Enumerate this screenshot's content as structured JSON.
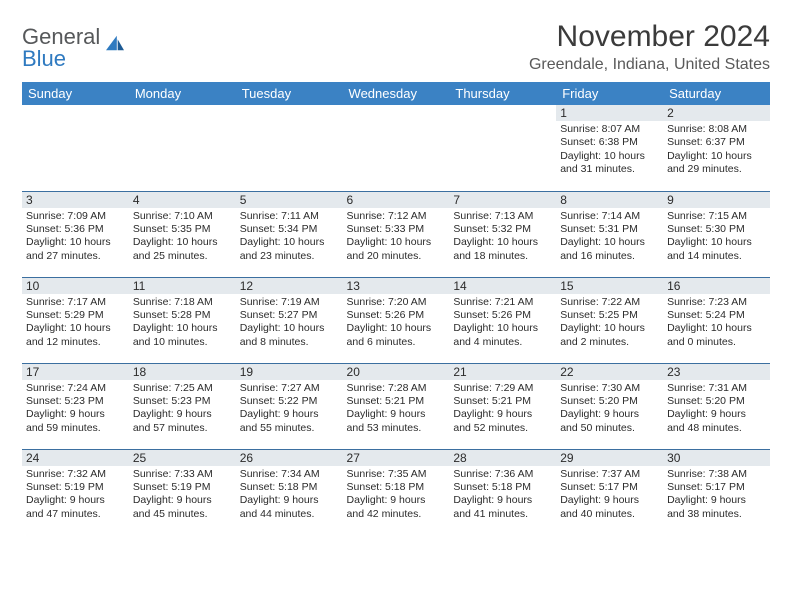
{
  "brand": {
    "line1": "General",
    "line2": "Blue"
  },
  "title": "November 2024",
  "location": "Greendale, Indiana, United States",
  "colors": {
    "header_bg": "#3b82c4",
    "header_text": "#ffffff",
    "daynum_bg": "#e4e9ed",
    "row_border": "#3b6fa0",
    "title_color": "#3b3b3b",
    "location_color": "#5a5a5a",
    "brand_gray": "#56585a",
    "brand_blue": "#2f7ac0"
  },
  "weekdays": [
    "Sunday",
    "Monday",
    "Tuesday",
    "Wednesday",
    "Thursday",
    "Friday",
    "Saturday"
  ],
  "weeks": [
    [
      {
        "day": "",
        "sunrise": "",
        "sunset": "",
        "daylight": ""
      },
      {
        "day": "",
        "sunrise": "",
        "sunset": "",
        "daylight": ""
      },
      {
        "day": "",
        "sunrise": "",
        "sunset": "",
        "daylight": ""
      },
      {
        "day": "",
        "sunrise": "",
        "sunset": "",
        "daylight": ""
      },
      {
        "day": "",
        "sunrise": "",
        "sunset": "",
        "daylight": ""
      },
      {
        "day": "1",
        "sunrise": "Sunrise: 8:07 AM",
        "sunset": "Sunset: 6:38 PM",
        "daylight": "Daylight: 10 hours and 31 minutes."
      },
      {
        "day": "2",
        "sunrise": "Sunrise: 8:08 AM",
        "sunset": "Sunset: 6:37 PM",
        "daylight": "Daylight: 10 hours and 29 minutes."
      }
    ],
    [
      {
        "day": "3",
        "sunrise": "Sunrise: 7:09 AM",
        "sunset": "Sunset: 5:36 PM",
        "daylight": "Daylight: 10 hours and 27 minutes."
      },
      {
        "day": "4",
        "sunrise": "Sunrise: 7:10 AM",
        "sunset": "Sunset: 5:35 PM",
        "daylight": "Daylight: 10 hours and 25 minutes."
      },
      {
        "day": "5",
        "sunrise": "Sunrise: 7:11 AM",
        "sunset": "Sunset: 5:34 PM",
        "daylight": "Daylight: 10 hours and 23 minutes."
      },
      {
        "day": "6",
        "sunrise": "Sunrise: 7:12 AM",
        "sunset": "Sunset: 5:33 PM",
        "daylight": "Daylight: 10 hours and 20 minutes."
      },
      {
        "day": "7",
        "sunrise": "Sunrise: 7:13 AM",
        "sunset": "Sunset: 5:32 PM",
        "daylight": "Daylight: 10 hours and 18 minutes."
      },
      {
        "day": "8",
        "sunrise": "Sunrise: 7:14 AM",
        "sunset": "Sunset: 5:31 PM",
        "daylight": "Daylight: 10 hours and 16 minutes."
      },
      {
        "day": "9",
        "sunrise": "Sunrise: 7:15 AM",
        "sunset": "Sunset: 5:30 PM",
        "daylight": "Daylight: 10 hours and 14 minutes."
      }
    ],
    [
      {
        "day": "10",
        "sunrise": "Sunrise: 7:17 AM",
        "sunset": "Sunset: 5:29 PM",
        "daylight": "Daylight: 10 hours and 12 minutes."
      },
      {
        "day": "11",
        "sunrise": "Sunrise: 7:18 AM",
        "sunset": "Sunset: 5:28 PM",
        "daylight": "Daylight: 10 hours and 10 minutes."
      },
      {
        "day": "12",
        "sunrise": "Sunrise: 7:19 AM",
        "sunset": "Sunset: 5:27 PM",
        "daylight": "Daylight: 10 hours and 8 minutes."
      },
      {
        "day": "13",
        "sunrise": "Sunrise: 7:20 AM",
        "sunset": "Sunset: 5:26 PM",
        "daylight": "Daylight: 10 hours and 6 minutes."
      },
      {
        "day": "14",
        "sunrise": "Sunrise: 7:21 AM",
        "sunset": "Sunset: 5:26 PM",
        "daylight": "Daylight: 10 hours and 4 minutes."
      },
      {
        "day": "15",
        "sunrise": "Sunrise: 7:22 AM",
        "sunset": "Sunset: 5:25 PM",
        "daylight": "Daylight: 10 hours and 2 minutes."
      },
      {
        "day": "16",
        "sunrise": "Sunrise: 7:23 AM",
        "sunset": "Sunset: 5:24 PM",
        "daylight": "Daylight: 10 hours and 0 minutes."
      }
    ],
    [
      {
        "day": "17",
        "sunrise": "Sunrise: 7:24 AM",
        "sunset": "Sunset: 5:23 PM",
        "daylight": "Daylight: 9 hours and 59 minutes."
      },
      {
        "day": "18",
        "sunrise": "Sunrise: 7:25 AM",
        "sunset": "Sunset: 5:23 PM",
        "daylight": "Daylight: 9 hours and 57 minutes."
      },
      {
        "day": "19",
        "sunrise": "Sunrise: 7:27 AM",
        "sunset": "Sunset: 5:22 PM",
        "daylight": "Daylight: 9 hours and 55 minutes."
      },
      {
        "day": "20",
        "sunrise": "Sunrise: 7:28 AM",
        "sunset": "Sunset: 5:21 PM",
        "daylight": "Daylight: 9 hours and 53 minutes."
      },
      {
        "day": "21",
        "sunrise": "Sunrise: 7:29 AM",
        "sunset": "Sunset: 5:21 PM",
        "daylight": "Daylight: 9 hours and 52 minutes."
      },
      {
        "day": "22",
        "sunrise": "Sunrise: 7:30 AM",
        "sunset": "Sunset: 5:20 PM",
        "daylight": "Daylight: 9 hours and 50 minutes."
      },
      {
        "day": "23",
        "sunrise": "Sunrise: 7:31 AM",
        "sunset": "Sunset: 5:20 PM",
        "daylight": "Daylight: 9 hours and 48 minutes."
      }
    ],
    [
      {
        "day": "24",
        "sunrise": "Sunrise: 7:32 AM",
        "sunset": "Sunset: 5:19 PM",
        "daylight": "Daylight: 9 hours and 47 minutes."
      },
      {
        "day": "25",
        "sunrise": "Sunrise: 7:33 AM",
        "sunset": "Sunset: 5:19 PM",
        "daylight": "Daylight: 9 hours and 45 minutes."
      },
      {
        "day": "26",
        "sunrise": "Sunrise: 7:34 AM",
        "sunset": "Sunset: 5:18 PM",
        "daylight": "Daylight: 9 hours and 44 minutes."
      },
      {
        "day": "27",
        "sunrise": "Sunrise: 7:35 AM",
        "sunset": "Sunset: 5:18 PM",
        "daylight": "Daylight: 9 hours and 42 minutes."
      },
      {
        "day": "28",
        "sunrise": "Sunrise: 7:36 AM",
        "sunset": "Sunset: 5:18 PM",
        "daylight": "Daylight: 9 hours and 41 minutes."
      },
      {
        "day": "29",
        "sunrise": "Sunrise: 7:37 AM",
        "sunset": "Sunset: 5:17 PM",
        "daylight": "Daylight: 9 hours and 40 minutes."
      },
      {
        "day": "30",
        "sunrise": "Sunrise: 7:38 AM",
        "sunset": "Sunset: 5:17 PM",
        "daylight": "Daylight: 9 hours and 38 minutes."
      }
    ]
  ]
}
